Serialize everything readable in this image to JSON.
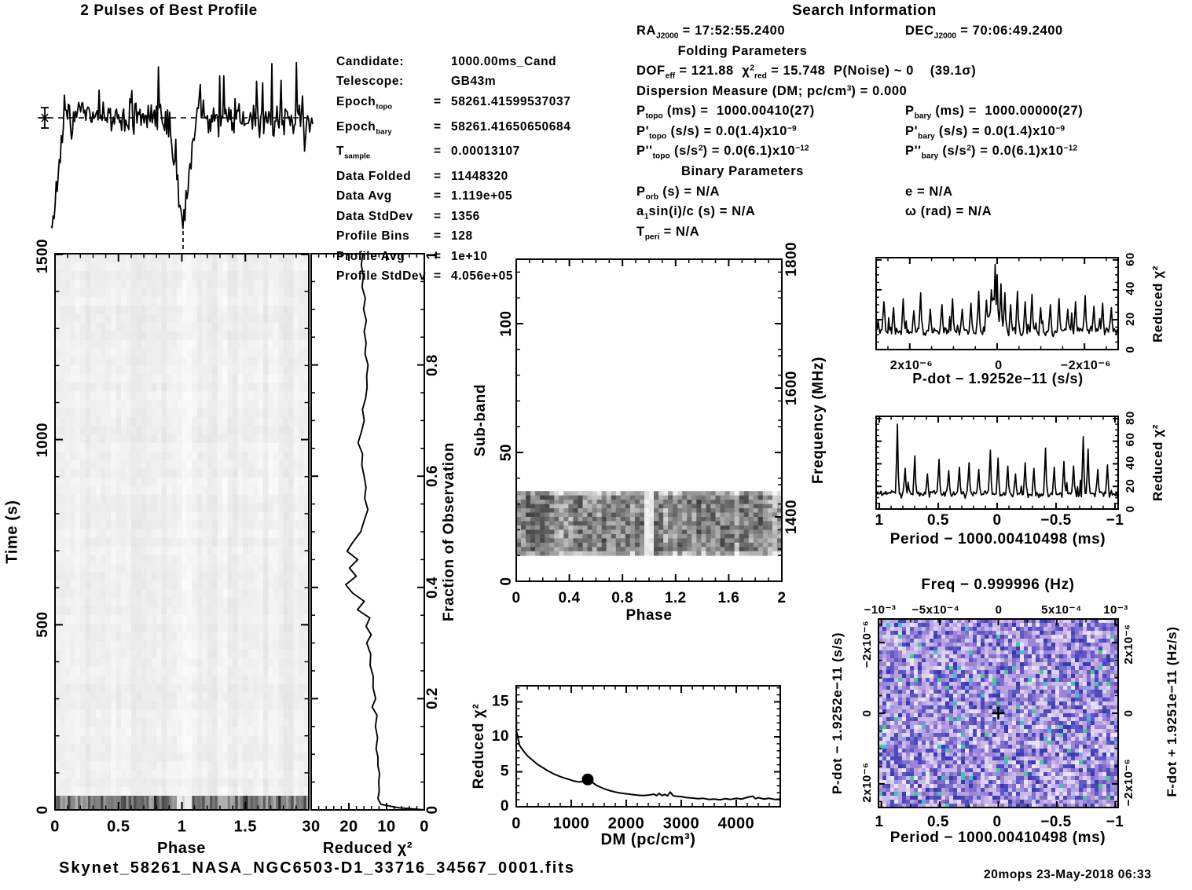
{
  "colors": {
    "background": "#ffffff",
    "ink": "#000000"
  },
  "footer": {
    "filename": "Skynet_58261_NASA_NGC6503-D1_33716_34567_0001.fits",
    "timestamp": "20mops 23-May-2018 06:33"
  },
  "candidate": {
    "rows": [
      {
        "label": [
          {
            "t": "Candidate:"
          }
        ],
        "eq": "",
        "value": "1000.00ms_Cand"
      },
      {
        "label": [
          {
            "t": "Telescope:"
          }
        ],
        "eq": "",
        "value": "GB43m"
      },
      {
        "label": [
          {
            "t": "Epoch"
          },
          {
            "b": "topo"
          }
        ],
        "eq": "=",
        "value": "58261.41599537037"
      },
      {
        "label": [
          {
            "t": "Epoch"
          },
          {
            "b": "bary"
          }
        ],
        "eq": "=",
        "value": "58261.41650650684"
      },
      {
        "label": [
          {
            "t": "T"
          },
          {
            "b": "sample"
          }
        ],
        "eq": "=",
        "value": "0.00013107"
      },
      {
        "label": [
          {
            "t": "Data Folded"
          }
        ],
        "eq": "=",
        "value": "11448320"
      },
      {
        "label": [
          {
            "t": "Data Avg"
          }
        ],
        "eq": "=",
        "value": "1.119e+05"
      },
      {
        "label": [
          {
            "t": "Data StdDev"
          }
        ],
        "eq": "=",
        "value": "1356"
      },
      {
        "label": [
          {
            "t": "Profile Bins"
          }
        ],
        "eq": "=",
        "value": "128"
      },
      {
        "label": [
          {
            "t": "Profile Avg"
          }
        ],
        "eq": "=",
        "value": "1e+10"
      },
      {
        "label": [
          {
            "t": "Profile StdDev"
          }
        ],
        "eq": "=",
        "value": "4.056e+05"
      }
    ]
  },
  "search_info": {
    "title": "Search Information",
    "ra": [
      {
        "t": "RA"
      },
      {
        "b": "J2000"
      },
      {
        "t": " = 17:52:55.2400"
      }
    ],
    "dec": [
      {
        "t": "DEC"
      },
      {
        "b": "J2000"
      },
      {
        "t": " = 70:06:49.2400"
      }
    ],
    "folding_header": "Folding Parameters",
    "dof": [
      {
        "t": "DOF"
      },
      {
        "b": "eff"
      },
      {
        "t": " = 121.88  "
      },
      {
        "t": "χ"
      },
      {
        "p": "2"
      },
      {
        "b": "red"
      },
      {
        "t": " = 15.748  P(Noise) ~ 0    (39.1σ)"
      }
    ],
    "dm": [
      {
        "t": "Dispersion Measure (DM; pc/cm"
      },
      {
        "p": "3"
      },
      {
        "t": ") = 0.000"
      }
    ],
    "ptopo": [
      {
        "t": "P"
      },
      {
        "b": "topo"
      },
      {
        "t": " (ms) =  1000.00410(27)"
      }
    ],
    "pbary": [
      {
        "t": "P"
      },
      {
        "b": "bary"
      },
      {
        "t": " (ms) =  1000.00000(27)"
      }
    ],
    "pdtopo": [
      {
        "t": "P'"
      },
      {
        "b": "topo"
      },
      {
        "t": " (s/s) = 0.0(1.4)x10"
      },
      {
        "p": "−9"
      }
    ],
    "pdbary": [
      {
        "t": "P'"
      },
      {
        "b": "bary"
      },
      {
        "t": " (s/s) = 0.0(1.4)x10"
      },
      {
        "p": "−9"
      }
    ],
    "pddtopo": [
      {
        "t": "P''"
      },
      {
        "b": "topo"
      },
      {
        "t": " (s/s"
      },
      {
        "p": "2"
      },
      {
        "t": ") = 0.0(6.1)x10"
      },
      {
        "p": "−12"
      }
    ],
    "pddbary": [
      {
        "t": "P''"
      },
      {
        "b": "bary"
      },
      {
        "t": " (s/s"
      },
      {
        "p": "2"
      },
      {
        "t": ") = 0.0(6.1)x10"
      },
      {
        "p": "−12"
      }
    ],
    "binary_header": "Binary Parameters",
    "porb": [
      {
        "t": "P"
      },
      {
        "b": "orb"
      },
      {
        "t": " (s) = N/A"
      }
    ],
    "ecc": [
      {
        "t": "e = N/A"
      }
    ],
    "asini": [
      {
        "t": "a"
      },
      {
        "b": "1"
      },
      {
        "t": "sin(i)/c (s) = N/A"
      }
    ],
    "omega": [
      {
        "t": "ω (rad) = N/A"
      }
    ],
    "tperi": [
      {
        "t": "T"
      },
      {
        "b": "peri"
      },
      {
        "t": " = N/A"
      }
    ]
  },
  "chart_data": [
    {
      "id": "best_profile",
      "type": "line",
      "title": "2 Pulses of Best Profile",
      "xlim": [
        0,
        2
      ],
      "bins_per_period": 128,
      "dip_phases": [
        0,
        1
      ],
      "dip_depth": 5.1,
      "noise_sigma": 1.1,
      "mean_marker": true,
      "seed": 7,
      "note": "noisy folded profile; deep narrow dips at phases 0 and 1; dashed mean line with error-bar marker at left; dashed vertical at phase 1"
    },
    {
      "id": "time_vs_phase",
      "type": "heatmap",
      "xlabel": "Phase",
      "ylabel": "Time (s)",
      "xlim": [
        0,
        2
      ],
      "ylim": [
        0,
        1500
      ],
      "xticks": [
        "0",
        "0.5",
        "1",
        "1.5"
      ],
      "yticks": [
        "0",
        "500",
        "1000",
        "1500"
      ],
      "seed": 11,
      "features": {
        "dark_band_time_range": [
          0,
          25
        ],
        "light_column_phase": 1.0,
        "body_grey": "#f1f1f1"
      }
    },
    {
      "id": "reduced_chi2_vs_fraction",
      "type": "line",
      "xlabel": "Reduced χ²",
      "xlim": [
        30,
        0
      ],
      "xticks": [
        "30",
        "20",
        "10",
        "0"
      ],
      "right_ylabel": "Fraction of Observation",
      "ylim": [
        0,
        1
      ],
      "right_yticks": [
        "0",
        "0.2",
        "0.4",
        "0.6",
        "0.8",
        "1"
      ],
      "points": [
        [
          0,
          0
        ],
        [
          0.004,
          7
        ],
        [
          0.01,
          11.5
        ],
        [
          0.02,
          12.3
        ],
        [
          0.035,
          11.8
        ],
        [
          0.05,
          12.4
        ],
        [
          0.065,
          11.9
        ],
        [
          0.08,
          12.6
        ],
        [
          0.095,
          12.1
        ],
        [
          0.11,
          12.8
        ],
        [
          0.13,
          12.4
        ],
        [
          0.15,
          13.2
        ],
        [
          0.17,
          12.7
        ],
        [
          0.185,
          13.8
        ],
        [
          0.2,
          13.1
        ],
        [
          0.22,
          13.9
        ],
        [
          0.24,
          13.4
        ],
        [
          0.26,
          14.4
        ],
        [
          0.28,
          14.0
        ],
        [
          0.3,
          15.0
        ],
        [
          0.315,
          14.2
        ],
        [
          0.33,
          15.3
        ],
        [
          0.345,
          14.6
        ],
        [
          0.36,
          17.6
        ],
        [
          0.375,
          15.9
        ],
        [
          0.39,
          18.8
        ],
        [
          0.405,
          20.8
        ],
        [
          0.42,
          18.4
        ],
        [
          0.435,
          19.6
        ],
        [
          0.45,
          17.8
        ],
        [
          0.465,
          20.2
        ],
        [
          0.48,
          18.9
        ],
        [
          0.5,
          16.9
        ],
        [
          0.52,
          15.8
        ],
        [
          0.54,
          15.2
        ],
        [
          0.56,
          15.9
        ],
        [
          0.58,
          15.3
        ],
        [
          0.6,
          16.3
        ],
        [
          0.62,
          16.9
        ],
        [
          0.64,
          16.4
        ],
        [
          0.66,
          17.3
        ],
        [
          0.68,
          16.6
        ],
        [
          0.7,
          15.8
        ],
        [
          0.72,
          16.2
        ],
        [
          0.74,
          15.5
        ],
        [
          0.76,
          15.1
        ],
        [
          0.78,
          15.6
        ],
        [
          0.8,
          15.0
        ],
        [
          0.82,
          15.7
        ],
        [
          0.84,
          15.2
        ],
        [
          0.86,
          16.0
        ],
        [
          0.88,
          15.4
        ],
        [
          0.9,
          16.1
        ],
        [
          0.92,
          15.6
        ],
        [
          0.94,
          16.3
        ],
        [
          0.96,
          15.9
        ],
        [
          0.98,
          16.6
        ],
        [
          1.0,
          16.4
        ]
      ]
    },
    {
      "id": "subband_vs_phase",
      "type": "heatmap",
      "xlabel": "Phase",
      "ylabel": "Sub-band",
      "right_ylabel": "Frequency (MHz)",
      "xlim": [
        0,
        2
      ],
      "ylim": [
        0,
        125
      ],
      "freq_lim": [
        1300,
        1800
      ],
      "xticks": [
        "0",
        "0.4",
        "0.8",
        "1.2",
        "1.6",
        "2"
      ],
      "yticks": [
        "0",
        "50",
        "100"
      ],
      "right_yticks": [
        "1400",
        "1600",
        "1800"
      ],
      "band_subbands": [
        10,
        35
      ],
      "gap_phase": [
        0.97,
        1.05
      ],
      "seed": 13
    },
    {
      "id": "reduced_chi2_vs_dm",
      "type": "line",
      "xlabel": "DM (pc/cm³)",
      "ylabel": "Reduced χ²",
      "xlim": [
        0,
        4800
      ],
      "ylim": [
        0,
        17.3
      ],
      "xticks": [
        "0",
        "1000",
        "2000",
        "3000",
        "4000"
      ],
      "yticks": [
        "0",
        "5",
        "10",
        "15"
      ],
      "blob": {
        "dm": 1300,
        "chi2": 3.9
      },
      "points": [
        [
          0,
          15.2
        ],
        [
          3,
          10.8
        ],
        [
          20,
          10.3
        ],
        [
          40,
          9.5
        ],
        [
          60,
          8.8
        ],
        [
          100,
          8.3
        ],
        [
          150,
          7.8
        ],
        [
          200,
          7.3
        ],
        [
          260,
          6.9
        ],
        [
          320,
          6.5
        ],
        [
          380,
          6.1
        ],
        [
          440,
          5.8
        ],
        [
          500,
          5.5
        ],
        [
          560,
          5.2
        ],
        [
          620,
          4.95
        ],
        [
          680,
          4.7
        ],
        [
          740,
          4.5
        ],
        [
          800,
          4.3
        ],
        [
          860,
          4.15
        ],
        [
          920,
          4.0
        ],
        [
          980,
          3.85
        ],
        [
          1040,
          3.7
        ],
        [
          1100,
          3.6
        ],
        [
          1150,
          3.55
        ],
        [
          1200,
          3.6
        ],
        [
          1240,
          3.8
        ],
        [
          1270,
          4.2
        ],
        [
          1300,
          3.6
        ],
        [
          1320,
          4.3
        ],
        [
          1340,
          3.7
        ],
        [
          1360,
          4.1
        ],
        [
          1380,
          3.5
        ],
        [
          1400,
          3.4
        ],
        [
          1450,
          3.1
        ],
        [
          1500,
          2.9
        ],
        [
          1560,
          2.7
        ],
        [
          1620,
          2.5
        ],
        [
          1700,
          2.3
        ],
        [
          1800,
          2.1
        ],
        [
          1900,
          1.95
        ],
        [
          2000,
          1.85
        ],
        [
          2100,
          1.75
        ],
        [
          2200,
          1.65
        ],
        [
          2300,
          1.6
        ],
        [
          2400,
          1.65
        ],
        [
          2500,
          1.8
        ],
        [
          2550,
          1.6
        ],
        [
          2600,
          1.9
        ],
        [
          2650,
          1.6
        ],
        [
          2700,
          1.75
        ],
        [
          2750,
          1.55
        ],
        [
          2800,
          2.1
        ],
        [
          2850,
          1.6
        ],
        [
          2900,
          1.5
        ],
        [
          3000,
          1.45
        ],
        [
          3100,
          1.3
        ],
        [
          3200,
          1.25
        ],
        [
          3300,
          1.15
        ],
        [
          3400,
          1.2
        ],
        [
          3500,
          1.05
        ],
        [
          3600,
          1.1
        ],
        [
          3700,
          1.0
        ],
        [
          3800,
          1.15
        ],
        [
          3900,
          1.05
        ],
        [
          4000,
          1.2
        ],
        [
          4100,
          1.1
        ],
        [
          4200,
          1.35
        ],
        [
          4300,
          1.5
        ],
        [
          4350,
          1.15
        ],
        [
          4400,
          1.3
        ],
        [
          4500,
          1.1
        ],
        [
          4600,
          1.2
        ],
        [
          4700,
          1.05
        ],
        [
          4800,
          1.1
        ]
      ]
    },
    {
      "id": "reduced_chi2_vs_pdot",
      "type": "line",
      "xlabel": "P-dot − 1.9252e−11 (s/s)",
      "xticks": [
        "2x10⁻⁶",
        "0",
        "−2x10⁻⁶"
      ],
      "right_ylabel": "Reduced χ²",
      "ylim": [
        0,
        61.5
      ],
      "right_yticks": [
        "0",
        "20",
        "40",
        "60"
      ],
      "base_level": 14,
      "seed": 5,
      "peak": {
        "f": 0.49,
        "h": 26,
        "w": 0.025
      },
      "spikes": [
        [
          0.03,
          32
        ],
        [
          0.07,
          28
        ],
        [
          0.11,
          34
        ],
        [
          0.155,
          26
        ],
        [
          0.185,
          38
        ],
        [
          0.225,
          27
        ],
        [
          0.27,
          30
        ],
        [
          0.315,
          34
        ],
        [
          0.355,
          27
        ],
        [
          0.39,
          31
        ],
        [
          0.425,
          39
        ],
        [
          0.455,
          33
        ],
        [
          0.475,
          40
        ],
        [
          0.49,
          57
        ],
        [
          0.5,
          50
        ],
        [
          0.515,
          44
        ],
        [
          0.53,
          38
        ],
        [
          0.555,
          30
        ],
        [
          0.585,
          39
        ],
        [
          0.615,
          32
        ],
        [
          0.645,
          37
        ],
        [
          0.68,
          28
        ],
        [
          0.72,
          30
        ],
        [
          0.755,
          34
        ],
        [
          0.79,
          27
        ],
        [
          0.825,
          32
        ],
        [
          0.865,
          36
        ],
        [
          0.9,
          29
        ],
        [
          0.935,
          31
        ],
        [
          0.97,
          28
        ]
      ]
    },
    {
      "id": "reduced_chi2_vs_period",
      "type": "line",
      "xlabel": "Period − 1000.00410498 (ms)",
      "xticks": [
        "1",
        "0.5",
        "0",
        "−0.5",
        "−1"
      ],
      "right_ylabel": "Reduced χ²",
      "ylim": [
        0,
        82
      ],
      "right_yticks": [
        "0",
        "20",
        "40",
        "60",
        "80"
      ],
      "base_level": 15,
      "seed": 9,
      "peak": null,
      "spikes": [
        [
          0.086,
          75
        ],
        [
          0.12,
          36
        ],
        [
          0.16,
          47
        ],
        [
          0.21,
          31
        ],
        [
          0.26,
          44
        ],
        [
          0.3,
          34
        ],
        [
          0.345,
          37
        ],
        [
          0.385,
          41
        ],
        [
          0.425,
          35
        ],
        [
          0.47,
          52
        ],
        [
          0.505,
          45
        ],
        [
          0.545,
          38
        ],
        [
          0.575,
          31
        ],
        [
          0.615,
          41
        ],
        [
          0.65,
          36
        ],
        [
          0.7,
          54
        ],
        [
          0.735,
          37
        ],
        [
          0.775,
          42
        ],
        [
          0.815,
          38
        ],
        [
          0.855,
          64
        ],
        [
          0.875,
          53
        ],
        [
          0.915,
          35
        ],
        [
          0.955,
          39
        ]
      ]
    },
    {
      "id": "period_pdot_colormap",
      "type": "heatmap",
      "title": "Freq − 0.999996 (Hz)",
      "top_ticks": [
        "−10⁻³",
        "−5x10⁻⁴",
        "0",
        "5x10⁻⁴",
        "10⁻³"
      ],
      "left_label": "P-dot − 1.9252e−11 (s/s)",
      "left_ticks": [
        "−2x10⁻⁶",
        "0",
        "2x10⁻⁶"
      ],
      "right_label": "F-dot + 1.9251e−11 (Hz/s)",
      "right_ticks": [
        "2x10⁻⁶",
        "0",
        "−2x10⁻⁶"
      ],
      "bottom_label": "Period − 1000.00410498 (ms)",
      "bottom_ticks": [
        "1",
        "0.5",
        "0",
        "−0.5",
        "−1"
      ],
      "marker": "plus-at-center",
      "seed": 21,
      "palette": [
        [
          "#eae4f6",
          0.05
        ],
        [
          "#ddd2f0",
          0.13
        ],
        [
          "#cbb9e8",
          0.16
        ],
        [
          "#b7a0e0",
          0.14
        ],
        [
          "#9c85d6",
          0.12
        ],
        [
          "#8070cc",
          0.11
        ],
        [
          "#6058c6",
          0.1
        ],
        [
          "#4a48bc",
          0.09
        ],
        [
          "#3b3bb0",
          0.05
        ],
        [
          "#8e9ae4",
          0.02
        ],
        [
          "#3fc0c4",
          0.015
        ],
        [
          "#47ca90",
          0.015
        ]
      ]
    }
  ]
}
